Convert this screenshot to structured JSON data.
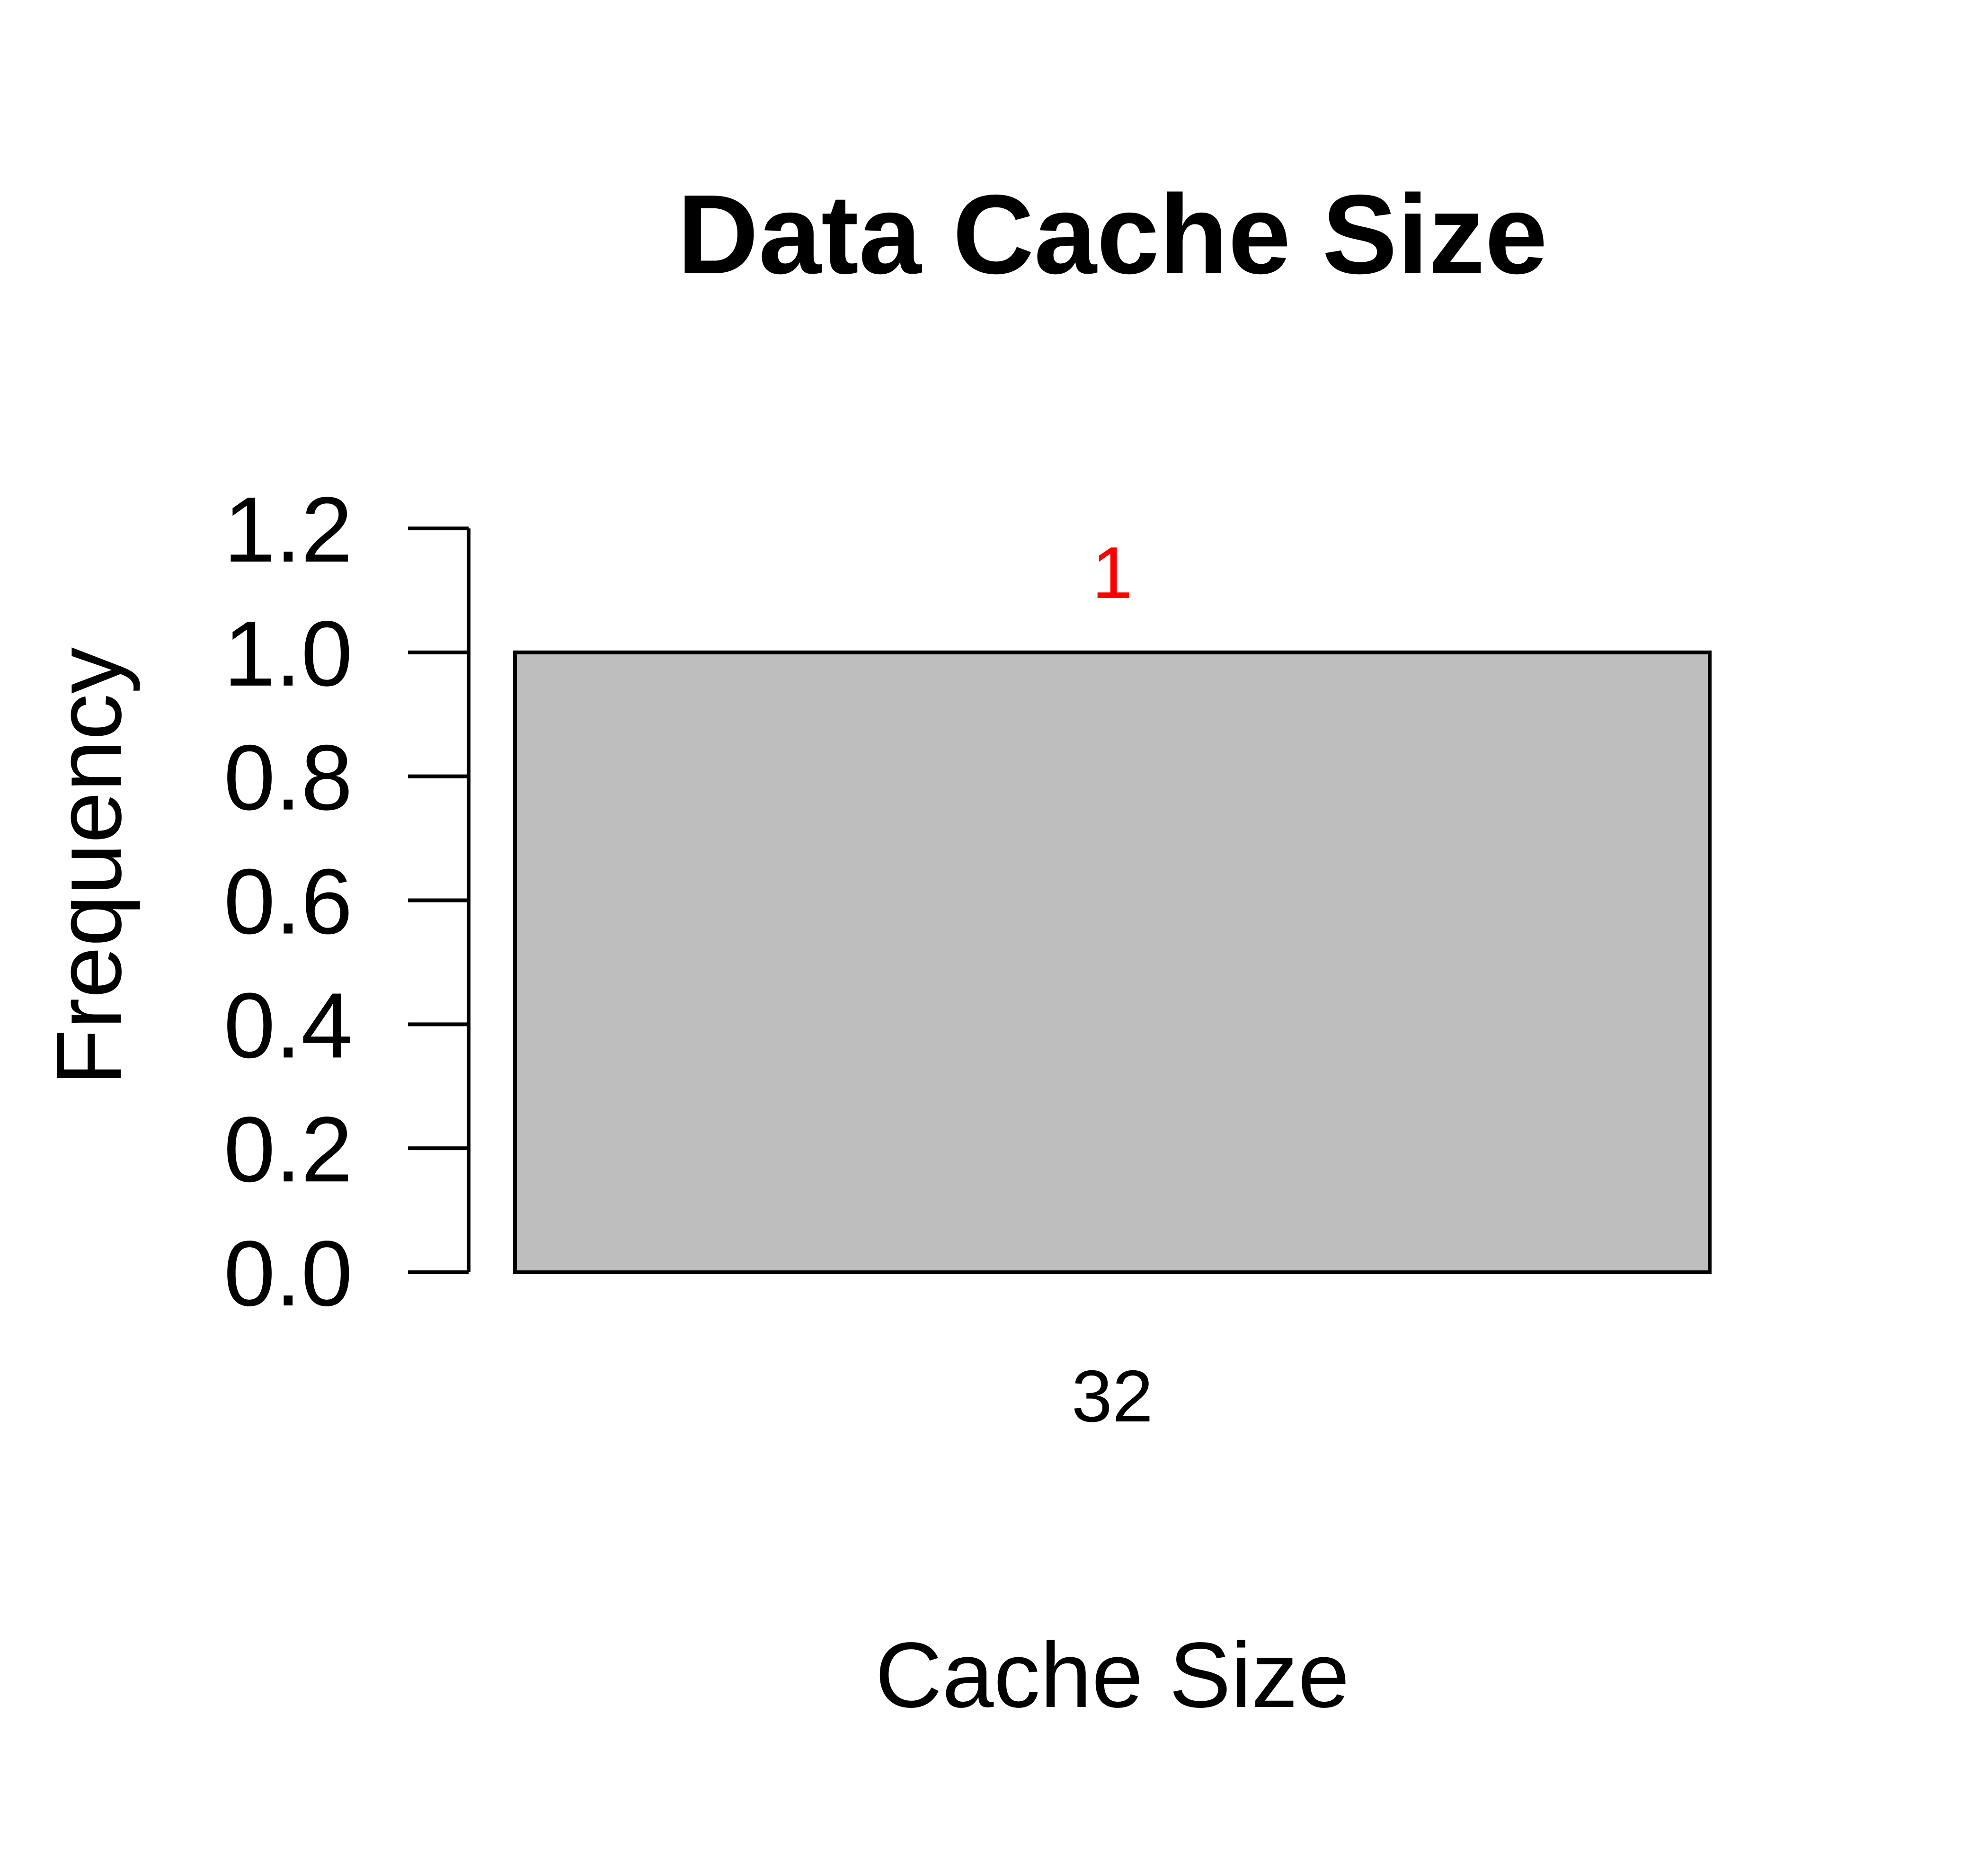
{
  "chart_data": {
    "type": "bar",
    "title": "Data Cache Size",
    "xlabel": "Cache Size",
    "ylabel": "Frequency",
    "categories": [
      "32"
    ],
    "values": [
      1
    ],
    "value_labels": [
      "1"
    ],
    "yticks": [
      "0.0",
      "0.2",
      "0.4",
      "0.6",
      "0.8",
      "1.0",
      "1.2"
    ],
    "ytick_values": [
      0,
      0.2,
      0.4,
      0.6,
      0.8,
      1.0,
      1.2
    ],
    "ylim": [
      0,
      1.2
    ],
    "grid": false,
    "legend": "none",
    "colors": {
      "bar_fill": "#bebebe",
      "bar_stroke": "#000000",
      "value_label": "#ff0000",
      "text": "#000000"
    }
  }
}
